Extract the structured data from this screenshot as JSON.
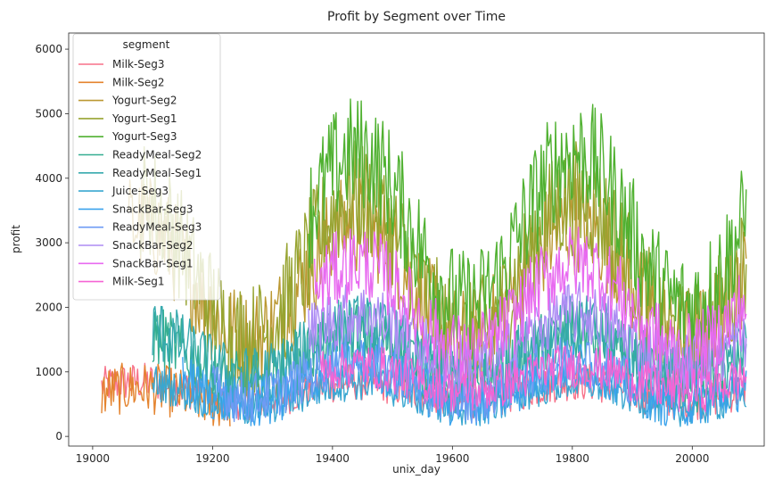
{
  "chart_data": {
    "type": "line",
    "title": "Profit by Segment over Time",
    "xlabel": "unix_day",
    "ylabel": "profit",
    "xlim": [
      18960,
      20120
    ],
    "ylim": [
      -150,
      6250
    ],
    "xticks": [
      19000,
      19200,
      19400,
      19600,
      19800,
      20000
    ],
    "yticks": [
      0,
      1000,
      2000,
      3000,
      4000,
      5000,
      6000
    ],
    "legend": {
      "title": "segment",
      "placement": "top-left"
    },
    "series": [
      {
        "name": "Milk-Seg3",
        "color": "#f77189",
        "x_range": [
          19015,
          20090
        ],
        "base": 700,
        "amp": 150,
        "noise": 300
      },
      {
        "name": "Milk-Seg2",
        "color": "#e4832e",
        "x_range": [
          19015,
          19230
        ],
        "base": 600,
        "amp": 150,
        "noise": 400
      },
      {
        "name": "Yogurt-Seg2",
        "color": "#bb9832",
        "x_range": [
          19060,
          20090
        ],
        "base": 2400,
        "amp": 900,
        "noise": 800
      },
      {
        "name": "Yogurt-Seg1",
        "color": "#97a431",
        "x_range": [
          19080,
          20090
        ],
        "base": 2600,
        "amp": 1100,
        "noise": 900
      },
      {
        "name": "Yogurt-Seg3",
        "color": "#50b131",
        "x_range": [
          19360,
          20090
        ],
        "base": 3200,
        "amp": 1200,
        "noise": 900
      },
      {
        "name": "ReadyMeal-Seg2",
        "color": "#34ae91",
        "x_range": [
          19100,
          20090
        ],
        "base": 1200,
        "amp": 400,
        "noise": 500
      },
      {
        "name": "ReadyMeal-Seg1",
        "color": "#37aaae",
        "x_range": [
          19100,
          20090
        ],
        "base": 1300,
        "amp": 400,
        "noise": 500
      },
      {
        "name": "Juice-Seg3",
        "color": "#39a7d0",
        "x_range": [
          19100,
          20090
        ],
        "base": 650,
        "amp": 200,
        "noise": 300
      },
      {
        "name": "SnackBar-Seg3",
        "color": "#3ba3ec",
        "x_range": [
          19150,
          20090
        ],
        "base": 800,
        "amp": 300,
        "noise": 400
      },
      {
        "name": "ReadyMeal-Seg3",
        "color": "#6e9bf4",
        "x_range": [
          19200,
          19900
        ],
        "base": 900,
        "amp": 300,
        "noise": 400
      },
      {
        "name": "SnackBar-Seg2",
        "color": "#ad8cf4",
        "x_range": [
          19360,
          20090
        ],
        "base": 1500,
        "amp": 400,
        "noise": 500
      },
      {
        "name": "SnackBar-Seg1",
        "color": "#e86af0",
        "x_range": [
          19370,
          20090
        ],
        "base": 2000,
        "amp": 700,
        "noise": 600
      },
      {
        "name": "Milk-Seg1",
        "color": "#f564d4",
        "x_range": [
          19380,
          20090
        ],
        "base": 900,
        "amp": 200,
        "noise": 350
      }
    ]
  }
}
